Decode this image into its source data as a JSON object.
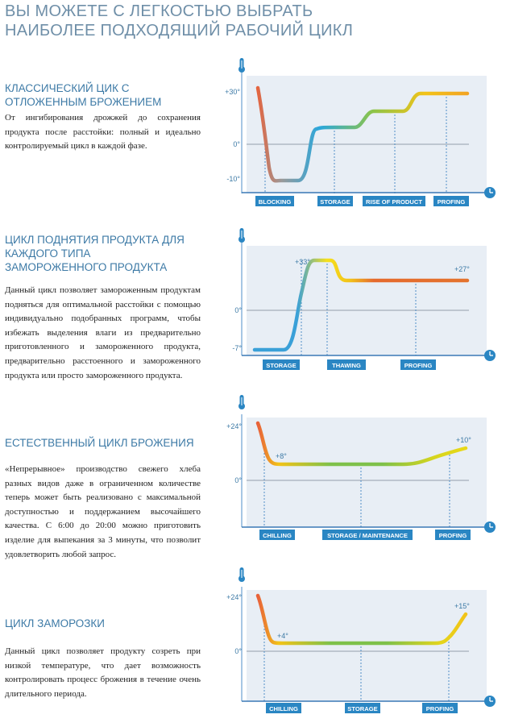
{
  "page": {
    "title_line1": "ВЫ МОЖЕТЕ С ЛЕГКОСТЬЮ ВЫБРАТЬ",
    "title_line2": "НАИБОЛЕЕ ПОДХОДЯЩИЙ  РАБОЧИЙ ЦИКЛ"
  },
  "sections": [
    {
      "title_lines": [
        "КЛАССИЧЕСКИЙ ЦИК С",
        "ОТЛОЖЕННЫМ БРОЖЕНИЕМ"
      ],
      "description": "От ингибирования дрожжей до сохранения продукта после расстойки: полный и идеально контролируемый цикл в каждой фазе."
    },
    {
      "title_lines": [
        "ЦИКЛ ПОДНЯТИЯ ПРОДУКТА ДЛЯ",
        "КАЖДОГО ТИПА",
        "ЗАМОРОЖЕННОГО ПРОДУКТА"
      ],
      "description": "Данный цикл позволяет замороженным продуктам подняться для оптимальной расстойки с помощью индивидуально подобранных программ, чтобы избежать выделения влаги из предварительно приготовленного и замороженного продукта, предварительно расстоенного и замороженного продукта или просто замороженного продукта."
    },
    {
      "title_lines": [
        "ЕСТЕСТВЕННЫЙ ЦИКЛ БРОЖЕНИЯ"
      ],
      "description": "«Непрерывное» производство свежего хлеба разных видов даже в ограниченном количестве теперь может быть реализовано с максимальной доступностью и поддержанием высочайшего качества. С 6:00 до 20:00  можно приготовить изделие для выпекания за 3 минуты, что позволит удовлетворить любой запрос."
    },
    {
      "title_lines": [
        "ЦИКЛ ЗАМОРОЗКИ"
      ],
      "description": "Данный цикл позволяет продукту созреть при низкой температуре, что дает возможность контролировать процесс брожения в течение очень длительного периода."
    }
  ],
  "chart_data": [
    {
      "type": "line",
      "x_icon": "clock-icon",
      "y_icon": "thermometer-icon",
      "y_ticks": [
        "+30°",
        "0°",
        "-10°"
      ],
      "phases": [
        "BLOCKING",
        "STORAGE",
        "RISE OF PRODUCT",
        "PROFING"
      ],
      "annotations": [],
      "gradient": [
        "#e8613a",
        "#9a9a9a",
        "#2aa7dc",
        "#8cc44a",
        "#f2c318",
        "#f2a424"
      ],
      "series": [
        {
          "y_approx": [
            30,
            30,
            5,
            -10,
            -10,
            10,
            10,
            10,
            20,
            20,
            30,
            30
          ]
        }
      ]
    },
    {
      "type": "line",
      "x_icon": "clock-icon",
      "y_icon": "thermometer-icon",
      "y_ticks": [
        "0°",
        "-7°"
      ],
      "phases": [
        "STORAGE",
        "THAWING",
        "PROFING"
      ],
      "annotations": [
        "+33°",
        "+27°"
      ],
      "gradient": [
        "#3aa0d8",
        "#3aa0d8",
        "#f6e01c",
        "#f2c11a",
        "#e56a2e",
        "#e4732e"
      ],
      "series": [
        {
          "y_approx": [
            -7,
            -7,
            -7,
            33,
            33,
            27,
            27,
            27
          ]
        }
      ]
    },
    {
      "type": "line",
      "x_icon": "clock-icon",
      "y_icon": "thermometer-icon",
      "y_ticks": [
        "+24°",
        "0°"
      ],
      "phases": [
        "CHILLING",
        "STORAGE / MAINTENANCE",
        "PROFING"
      ],
      "annotations": [
        "+8°",
        "+10°"
      ],
      "gradient": [
        "#e8613a",
        "#f2c318",
        "#7ec14a",
        "#7ec14a",
        "#d6d51e",
        "#e9d817"
      ],
      "series": [
        {
          "y_approx": [
            24,
            8,
            8,
            7,
            7,
            7,
            10
          ]
        }
      ]
    },
    {
      "type": "line",
      "x_icon": "clock-icon",
      "y_icon": "thermometer-icon",
      "y_ticks": [
        "+24°",
        "0°"
      ],
      "phases": [
        "CHILLING",
        "STORAGE",
        "PROFING"
      ],
      "annotations": [
        "+4°",
        "+15°"
      ],
      "gradient": [
        "#e8613a",
        "#f2c318",
        "#7ec14a",
        "#7ec14a",
        "#e4d51c",
        "#f2c318"
      ],
      "series": [
        {
          "y_approx": [
            24,
            4,
            4,
            4,
            4,
            4,
            15
          ]
        }
      ]
    }
  ]
}
